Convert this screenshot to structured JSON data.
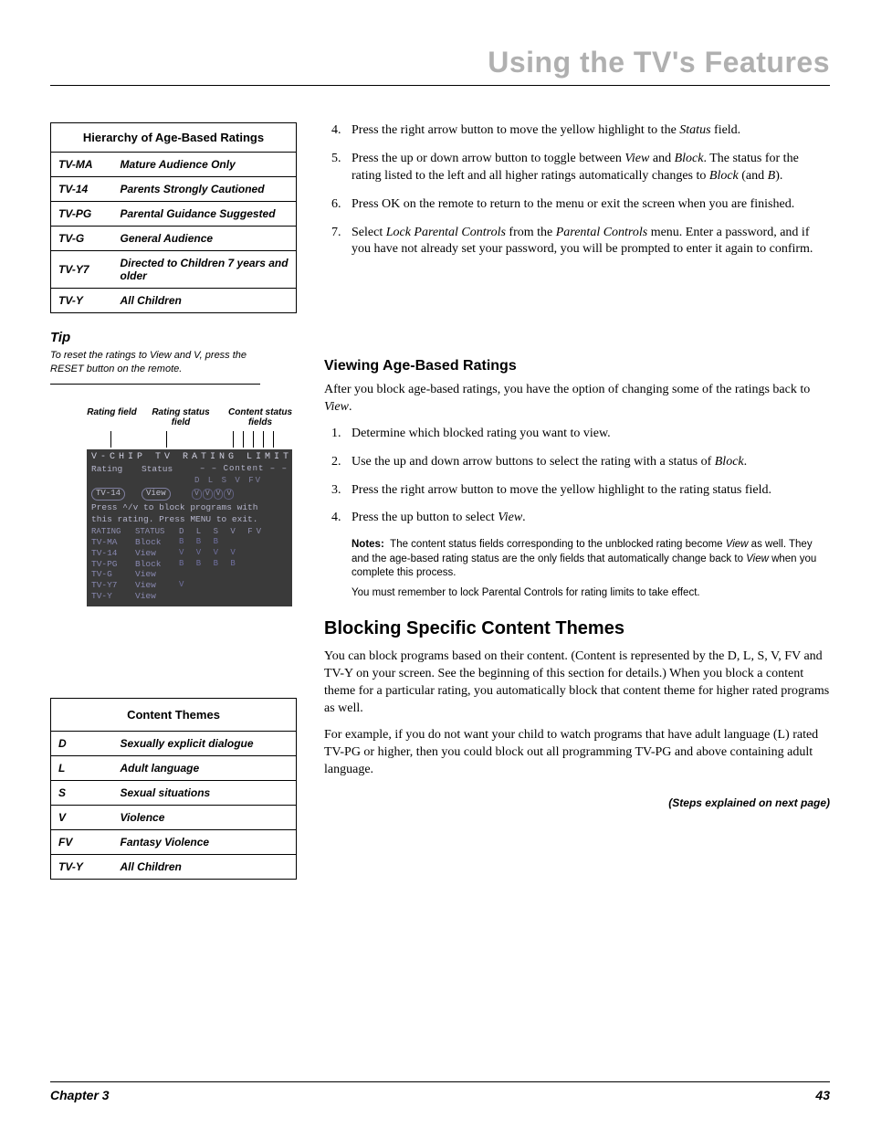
{
  "header_title": "Using the TV's Features",
  "hierarchy_table": {
    "title": "Hierarchy of Age-Based Ratings",
    "rows": [
      {
        "code": "TV-MA",
        "desc": "Mature Audience Only"
      },
      {
        "code": "TV-14",
        "desc": "Parents Strongly Cautioned"
      },
      {
        "code": "TV-PG",
        "desc": "Parental Guidance Suggested"
      },
      {
        "code": "TV-G",
        "desc": "General Audience"
      },
      {
        "code": "TV-Y7",
        "desc": "Directed to Children 7 years and older"
      },
      {
        "code": "TV-Y",
        "desc": "All Children"
      }
    ]
  },
  "tip": {
    "heading": "Tip",
    "text": "To reset the ratings to View and V, press the RESET button on the remote."
  },
  "vchip_labels": {
    "field": "Rating field",
    "status": "Rating status field",
    "content": "Content status fields"
  },
  "vchip_panel": {
    "title": "V-CHIP TV RATING LIMIT",
    "row_labels": {
      "rating": "Rating",
      "status": "Status"
    },
    "content_dash": "– – Content – –",
    "cols": "D  L  S  V  FV",
    "selected": {
      "rating": "TV-14",
      "status": "View",
      "mini": [
        "V",
        "V",
        "V",
        "V"
      ]
    },
    "msg1": "Press ^/v to block programs with",
    "msg2": "this rating. Press MENU to exit.",
    "hdr": {
      "rating": "RATING",
      "status": "STATUS",
      "cols": "D  L  S  V  FV"
    },
    "rows": [
      {
        "rating": "TV-MA",
        "status": "Block",
        "cols": "B  B  B"
      },
      {
        "rating": "TV-14",
        "status": "View",
        "cols": "V  V  V  V"
      },
      {
        "rating": "TV-PG",
        "status": "Block",
        "cols": "B  B  B  B"
      },
      {
        "rating": "TV-G",
        "status": "View",
        "cols": ""
      },
      {
        "rating": "TV-Y7",
        "status": "View",
        "cols": "            V"
      },
      {
        "rating": "TV-Y",
        "status": "View",
        "cols": ""
      }
    ]
  },
  "content_themes_table": {
    "title": "Content Themes",
    "rows": [
      {
        "code": "D",
        "desc": "Sexually explicit dialogue"
      },
      {
        "code": "L",
        "desc": "Adult language"
      },
      {
        "code": "S",
        "desc": "Sexual situations"
      },
      {
        "code": "V",
        "desc": "Violence"
      },
      {
        "code": "FV",
        "desc": "Fantasy Violence"
      },
      {
        "code": "TV-Y",
        "desc": "All Children"
      }
    ]
  },
  "top_steps": [
    "Press the right arrow button to move the yellow highlight to the <i>Status</i> field.",
    "Press the up or down arrow button to toggle between <i>View</i> and <i>Block</i>. The status for the rating listed to the left and all higher ratings automatically changes to <i>Block</i> (and <i>B</i>).",
    "Press OK on the remote to return to the menu or exit the screen when you are finished.",
    "Select <i>Lock Parental Controls</i> from the <i>Parental Controls</i> menu. Enter a password, and if you have not already set your password, you will be prompted to enter it again to confirm."
  ],
  "top_start": 4,
  "viewing_section": {
    "heading": "Viewing Age-Based Ratings",
    "intro": "After you block age-based ratings, you have the option of changing some of the ratings back to <i>View</i>.",
    "steps": [
      "Determine which blocked rating you want to view.",
      "Use the up and down arrow buttons to select the rating with a status of <i>Block</i>.",
      "Press the right arrow button to move the yellow highlight to the rating status field.",
      "Press the up button to select <i>View</i>."
    ],
    "notes_label": "Notes:",
    "notes1": "The content status fields corresponding to the unblocked rating become <i>View</i> as well. They and the age-based rating status are the only fields that automatically change back to <i>View</i> when you complete this process.",
    "notes2": "You must remember to lock Parental Controls for rating limits to take effect."
  },
  "blocking_section": {
    "heading": "Blocking Specific Content Themes",
    "p1": "You can block programs based on their content. (Content is represented by the D, L, S, V, FV and TV-Y on your screen. See the beginning of this section for details.) When you block a content theme for a particular rating, you automatically block that content theme for higher rated programs as well.",
    "p2": "For example, if you do not want your child to watch programs that have adult language (L) rated TV-PG or higher, then you could block out all programming TV-PG and above containing adult language.",
    "continued": "(Steps explained on next page)"
  },
  "footer": {
    "chapter": "Chapter 3",
    "page": "43"
  }
}
